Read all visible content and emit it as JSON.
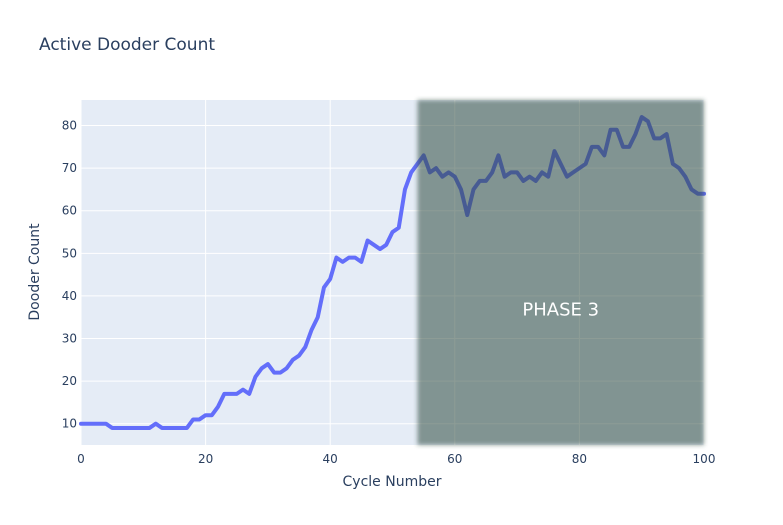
{
  "chart_data": {
    "type": "line",
    "title": "Active Dooder Count",
    "xlabel": "Cycle Number",
    "ylabel": "Dooder Count",
    "xlim": [
      0,
      100
    ],
    "ylim": [
      5,
      86
    ],
    "x_ticks": [
      0,
      20,
      40,
      60,
      80,
      100
    ],
    "y_ticks": [
      10,
      20,
      30,
      40,
      50,
      60,
      70,
      80
    ],
    "grid": true,
    "legend": "none",
    "colors": {
      "plot_background": "#e5ecf6",
      "grid": "#ffffff",
      "line": "#636efa",
      "highlight_fill": "#2f4a40"
    },
    "series": [
      {
        "x": [
          0,
          1,
          2,
          3,
          4,
          5,
          6,
          7,
          8,
          9,
          10,
          11,
          12,
          13,
          14,
          15,
          16,
          17,
          18,
          19,
          20,
          21,
          22,
          23,
          24,
          25,
          26,
          27,
          28,
          29,
          30,
          31,
          32,
          33,
          34,
          35,
          36,
          37,
          38,
          39,
          40,
          41,
          42,
          43,
          44,
          45,
          46,
          47,
          48,
          49,
          50,
          51,
          52,
          53,
          54,
          55,
          56,
          57,
          58,
          59,
          60,
          61,
          62,
          63,
          64,
          65,
          66,
          67,
          68,
          69,
          70,
          71,
          72,
          73,
          74,
          75,
          76,
          77,
          78,
          79,
          80,
          81,
          82,
          83,
          84,
          85,
          86,
          87,
          88,
          89,
          90,
          91,
          92,
          93,
          94,
          95,
          96,
          97,
          98,
          99,
          100
        ],
        "values": [
          10,
          10,
          10,
          10,
          10,
          9,
          9,
          9,
          9,
          9,
          9,
          9,
          10,
          9,
          9,
          9,
          9,
          9,
          11,
          11,
          12,
          12,
          14,
          17,
          17,
          17,
          18,
          17,
          21,
          23,
          24,
          22,
          22,
          23,
          25,
          26,
          28,
          32,
          35,
          42,
          44,
          49,
          48,
          49,
          49,
          48,
          53,
          52,
          51,
          52,
          55,
          56,
          65,
          69,
          71,
          73,
          69,
          70,
          68,
          69,
          68,
          65,
          59,
          65,
          67,
          67,
          69,
          73,
          68,
          69,
          69,
          67,
          68,
          67,
          69,
          68,
          74,
          71,
          68,
          69,
          70,
          71,
          75,
          75,
          73,
          79,
          79,
          75,
          75,
          78,
          82,
          81,
          77,
          77,
          78,
          71,
          70,
          68,
          65,
          64,
          64
        ]
      }
    ],
    "highlight": {
      "label": "PHASE 3",
      "x_start": 54,
      "x_end": 100,
      "opacity": 0.55
    }
  }
}
